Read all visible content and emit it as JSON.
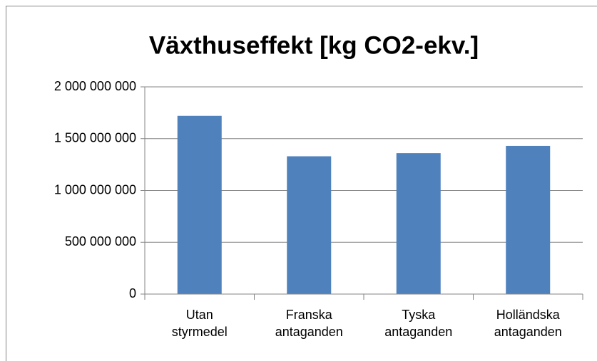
{
  "chart_data": {
    "type": "bar",
    "title": "Växthuseffekt [kg CO2-ekv.]",
    "categories": [
      "Utan styrmedel",
      "Franska antaganden",
      "Tyska antaganden",
      "Holländska antaganden"
    ],
    "values": [
      1720000000,
      1330000000,
      1360000000,
      1430000000
    ],
    "color": "#4f81bd",
    "ylim": [
      0,
      2000000000
    ],
    "yticks": [
      0,
      {
        "value": 500000000,
        "label": "500 000 000"
      },
      {
        "value": 1000000000,
        "label": "1 000 000 000"
      },
      {
        "value": 1500000000,
        "label": "1 500 000 000"
      },
      {
        "value": 2000000000,
        "label": "2 000 000 000"
      }
    ],
    "grid": true
  }
}
